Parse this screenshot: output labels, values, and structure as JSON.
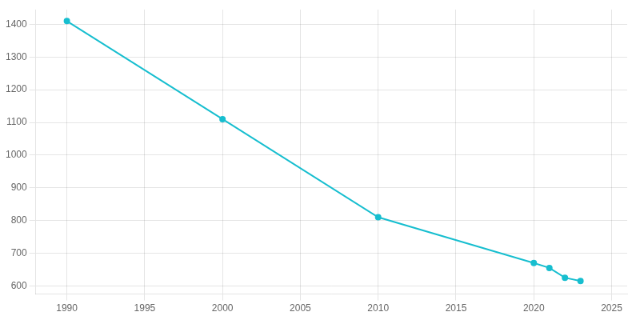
{
  "chart_data": {
    "type": "line",
    "x": [
      1990,
      2000,
      2010,
      2020,
      2021,
      2022,
      2023
    ],
    "values": [
      1410,
      1110,
      810,
      670,
      655,
      625,
      615
    ],
    "color": "#17becf",
    "marker": "o",
    "xlim": [
      1988,
      2026
    ],
    "ylim": [
      575,
      1445
    ],
    "xticks": [
      1990,
      1995,
      2000,
      2005,
      2010,
      2015,
      2020,
      2025
    ],
    "yticks": [
      600,
      700,
      800,
      900,
      1000,
      1100,
      1200,
      1300,
      1400
    ],
    "grid": true
  }
}
